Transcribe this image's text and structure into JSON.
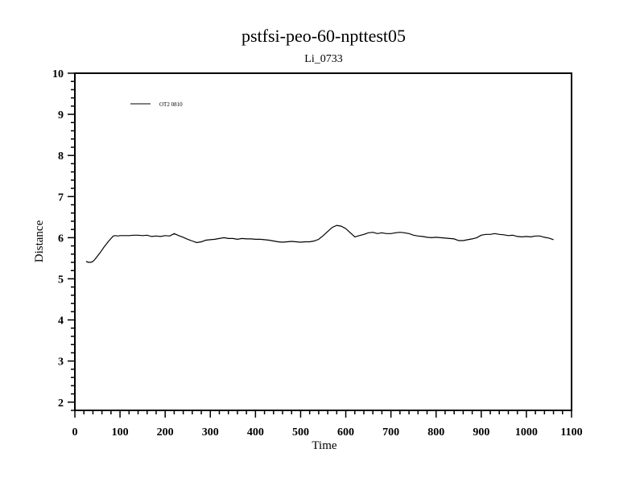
{
  "chart_data": {
    "type": "line",
    "title": "pstfsi-peo-60-npttest05",
    "subtitle": "Li_0733",
    "xlabel": "Time",
    "ylabel": "Distance",
    "xlim": [
      0,
      1100
    ],
    "ylim": [
      1.8,
      10
    ],
    "xticks": [
      0,
      100,
      200,
      300,
      400,
      500,
      600,
      700,
      800,
      900,
      1000,
      1100
    ],
    "yticks": [
      2,
      3,
      4,
      5,
      6,
      7,
      8,
      9,
      10
    ],
    "grid": false,
    "legend_position": "top-left",
    "series": [
      {
        "name": "OT2 0810",
        "color": "#000000",
        "x": [
          25,
          30,
          35,
          40,
          45,
          50,
          55,
          60,
          65,
          70,
          75,
          80,
          85,
          90,
          95,
          100,
          110,
          120,
          130,
          140,
          150,
          160,
          170,
          180,
          190,
          200,
          210,
          220,
          230,
          240,
          250,
          260,
          270,
          280,
          290,
          300,
          310,
          320,
          330,
          340,
          350,
          360,
          370,
          380,
          390,
          400,
          410,
          420,
          430,
          440,
          450,
          460,
          470,
          480,
          490,
          500,
          510,
          520,
          530,
          540,
          550,
          560,
          570,
          580,
          590,
          600,
          610,
          620,
          630,
          640,
          650,
          660,
          670,
          680,
          690,
          700,
          710,
          720,
          730,
          740,
          750,
          760,
          770,
          780,
          790,
          800,
          810,
          820,
          830,
          840,
          850,
          860,
          870,
          880,
          890,
          900,
          910,
          920,
          930,
          940,
          950,
          960,
          970,
          980,
          990,
          1000,
          1010,
          1020,
          1030,
          1040,
          1050,
          1060
        ],
        "y": [
          5.42,
          5.4,
          5.4,
          5.42,
          5.48,
          5.55,
          5.62,
          5.7,
          5.78,
          5.85,
          5.92,
          5.98,
          6.04,
          6.05,
          6.04,
          6.05,
          6.05,
          6.05,
          6.06,
          6.06,
          6.05,
          6.06,
          6.03,
          6.04,
          6.03,
          6.05,
          6.04,
          6.1,
          6.05,
          6.01,
          5.96,
          5.92,
          5.88,
          5.9,
          5.94,
          5.95,
          5.96,
          5.98,
          6.0,
          5.98,
          5.98,
          5.96,
          5.98,
          5.97,
          5.97,
          5.96,
          5.96,
          5.95,
          5.94,
          5.92,
          5.9,
          5.89,
          5.9,
          5.91,
          5.9,
          5.89,
          5.9,
          5.9,
          5.92,
          5.96,
          6.05,
          6.15,
          6.25,
          6.3,
          6.28,
          6.22,
          6.12,
          6.02,
          6.05,
          6.08,
          6.12,
          6.13,
          6.1,
          6.12,
          6.1,
          6.1,
          6.12,
          6.13,
          6.12,
          6.1,
          6.06,
          6.04,
          6.03,
          6.01,
          6.0,
          6.01,
          6.0,
          5.99,
          5.98,
          5.97,
          5.93,
          5.93,
          5.95,
          5.97,
          6.0,
          6.06,
          6.08,
          6.08,
          6.1,
          6.08,
          6.07,
          6.05,
          6.06,
          6.03,
          6.02,
          6.03,
          6.02,
          6.04,
          6.04,
          6.01,
          5.99,
          5.95
        ]
      }
    ]
  }
}
